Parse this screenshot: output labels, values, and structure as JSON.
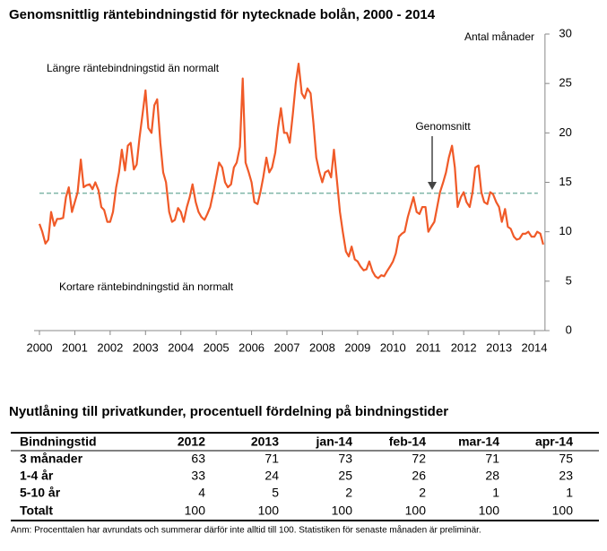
{
  "chart_data": {
    "type": "line",
    "title": "Genomsnittlig räntebindningstid för nytecknade bolån, 2000 - 2014",
    "y_label": "Antal månader",
    "annotations": [
      "Längre räntebindningstid än normalt",
      "Kortare räntebindningstid än normalt"
    ],
    "mean": {
      "label": "Genomsnitt",
      "value": 13.9,
      "color": "#7fb5a8"
    },
    "xlim": [
      2000,
      2014.3
    ],
    "xticks": [
      2000,
      2001,
      2002,
      2003,
      2004,
      2005,
      2006,
      2007,
      2008,
      2009,
      2010,
      2011,
      2012,
      2013,
      2014
    ],
    "ylim": [
      0,
      30
    ],
    "yticks": [
      0,
      5,
      10,
      15,
      20,
      25,
      30
    ],
    "x": [
      2000,
      2000.08,
      2000.17,
      2000.25,
      2000.33,
      2000.42,
      2000.5,
      2000.58,
      2000.67,
      2000.75,
      2000.83,
      2000.92,
      2001,
      2001.08,
      2001.17,
      2001.25,
      2001.33,
      2001.42,
      2001.5,
      2001.58,
      2001.67,
      2001.75,
      2001.83,
      2001.92,
      2002,
      2002.08,
      2002.17,
      2002.25,
      2002.33,
      2002.42,
      2002.5,
      2002.58,
      2002.67,
      2002.75,
      2002.83,
      2002.92,
      2003,
      2003.08,
      2003.17,
      2003.25,
      2003.33,
      2003.42,
      2003.5,
      2003.58,
      2003.67,
      2003.75,
      2003.83,
      2003.92,
      2004,
      2004.08,
      2004.17,
      2004.25,
      2004.33,
      2004.42,
      2004.5,
      2004.58,
      2004.67,
      2004.75,
      2004.83,
      2004.92,
      2005,
      2005.08,
      2005.17,
      2005.25,
      2005.33,
      2005.42,
      2005.5,
      2005.58,
      2005.67,
      2005.75,
      2005.83,
      2005.92,
      2006,
      2006.08,
      2006.17,
      2006.25,
      2006.33,
      2006.42,
      2006.5,
      2006.58,
      2006.67,
      2006.75,
      2006.83,
      2006.92,
      2007,
      2007.08,
      2007.17,
      2007.25,
      2007.33,
      2007.42,
      2007.5,
      2007.58,
      2007.67,
      2007.75,
      2007.83,
      2007.92,
      2008,
      2008.08,
      2008.17,
      2008.25,
      2008.33,
      2008.42,
      2008.5,
      2008.58,
      2008.67,
      2008.75,
      2008.83,
      2008.92,
      2009,
      2009.08,
      2009.17,
      2009.25,
      2009.33,
      2009.42,
      2009.5,
      2009.58,
      2009.67,
      2009.75,
      2009.83,
      2009.92,
      2010,
      2010.08,
      2010.17,
      2010.25,
      2010.33,
      2010.42,
      2010.5,
      2010.58,
      2010.67,
      2010.75,
      2010.83,
      2010.92,
      2011,
      2011.08,
      2011.17,
      2011.25,
      2011.33,
      2011.42,
      2011.5,
      2011.58,
      2011.67,
      2011.75,
      2011.83,
      2011.92,
      2012,
      2012.08,
      2012.17,
      2012.25,
      2012.33,
      2012.42,
      2012.5,
      2012.58,
      2012.67,
      2012.75,
      2012.83,
      2012.92,
      2013,
      2013.08,
      2013.17,
      2013.25,
      2013.33,
      2013.42,
      2013.5,
      2013.58,
      2013.67,
      2013.75,
      2013.83,
      2013.92,
      2014,
      2014.08,
      2014.17,
      2014.25
    ],
    "series": [
      {
        "name": "Räntebindningstid",
        "color": "#f05a28",
        "values": [
          10.8,
          10,
          8.8,
          9.2,
          12,
          10.6,
          11.3,
          11.3,
          11.4,
          13.5,
          14.5,
          12,
          13,
          14,
          17.3,
          14.5,
          14.7,
          14.8,
          14.3,
          15,
          14.2,
          12.5,
          12.2,
          11,
          11,
          12,
          14.5,
          16,
          18.3,
          16.2,
          18.7,
          19,
          16.3,
          16.8,
          19.5,
          22,
          24.3,
          20.5,
          20,
          22.8,
          23.4,
          19,
          16,
          15,
          12,
          11,
          11.2,
          12.4,
          12,
          11,
          12.5,
          13.5,
          14.8,
          13,
          12,
          11.5,
          11.2,
          11.8,
          12.5,
          14,
          15.5,
          17,
          16.5,
          15,
          14.5,
          14.8,
          16.5,
          17,
          18.6,
          25.5,
          17,
          16,
          15,
          13,
          12.8,
          14,
          15.5,
          17.5,
          16,
          16.5,
          18,
          20.5,
          22.5,
          20,
          20,
          19,
          22,
          25,
          27,
          24,
          23.5,
          24.5,
          24,
          21,
          17.5,
          16,
          15,
          16,
          16.2,
          15.5,
          18.3,
          15,
          12,
          10,
          8,
          7.5,
          8.5,
          7.2,
          7,
          6.5,
          6.1,
          6.2,
          7,
          6,
          5.5,
          5.3,
          5.6,
          5.5,
          6,
          6.5,
          7,
          7.8,
          9.5,
          9.8,
          10,
          11.5,
          12.5,
          13.5,
          12,
          11.8,
          12.5,
          12.5,
          10,
          10.5,
          11,
          12.5,
          14,
          15,
          16,
          17.5,
          18.7,
          16.5,
          12.5,
          13.5,
          14,
          13,
          12.5,
          14,
          16.5,
          16.7,
          14,
          13,
          12.8,
          14,
          13.8,
          13,
          12.5,
          11,
          12.3,
          10.5,
          10.3,
          9.5,
          9.2,
          9.3,
          9.8,
          9.8,
          10,
          9.5,
          9.5,
          10,
          9.8,
          8.7
        ]
      }
    ]
  },
  "table": {
    "title": "Nyutlåning till privatkunder, procentuell fördelning på bindningstider",
    "header": [
      "Bindningstid",
      "2012",
      "2013",
      "jan-14",
      "feb-14",
      "mar-14",
      "apr-14"
    ],
    "rows": [
      [
        "3 månader",
        63,
        71,
        73,
        72,
        71,
        75
      ],
      [
        "1-4 år",
        33,
        24,
        25,
        26,
        28,
        23
      ],
      [
        "5-10 år",
        4,
        5,
        2,
        2,
        1,
        1
      ],
      [
        "Totalt",
        100,
        100,
        100,
        100,
        100,
        100
      ]
    ],
    "note": "Anm: Procenttalen har avrundats och summerar därför inte alltid till 100. Statistiken för senaste månaden är preliminär."
  }
}
